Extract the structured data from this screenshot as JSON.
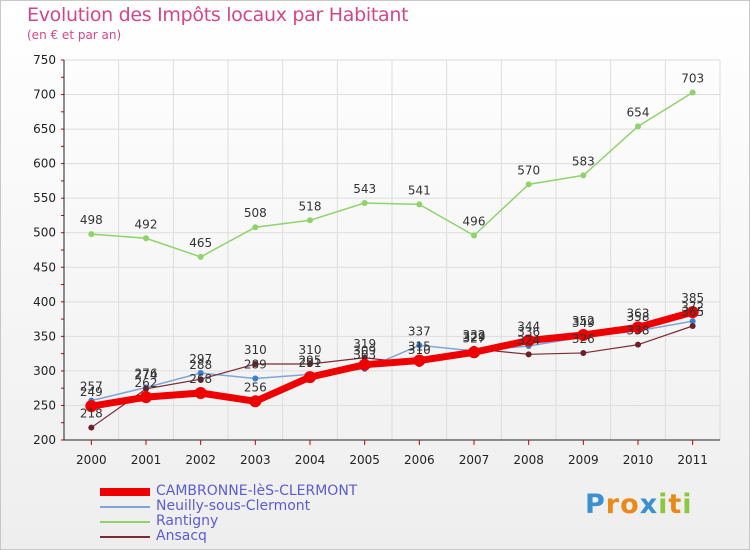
{
  "title": "Evolution des Impôts locaux par Habitant",
  "subtitle": "(en € et par an)",
  "logo": {
    "letters": [
      "P",
      "r",
      "o",
      "x",
      "i",
      "t",
      "i"
    ],
    "colors": [
      "#3c8fd0",
      "#e88a1a",
      "#e88a1a",
      "#3c8fd0",
      "#8dc63f",
      "#e88a1a",
      "#8dc63f"
    ]
  },
  "chart_data": {
    "type": "line",
    "categories": [
      "2000",
      "2001",
      "2002",
      "2003",
      "2004",
      "2005",
      "2006",
      "2007",
      "2008",
      "2009",
      "2010",
      "2011"
    ],
    "ylim": [
      200,
      750
    ],
    "yticks": [
      200,
      250,
      300,
      350,
      400,
      450,
      500,
      550,
      600,
      650,
      700,
      750
    ],
    "grid": true,
    "series": [
      {
        "name": "Rantigny",
        "color": "#8ed46b",
        "width": 1.5,
        "values": [
          498,
          492,
          465,
          508,
          518,
          543,
          541,
          496,
          570,
          583,
          654,
          703
        ]
      },
      {
        "name": "Neuilly-sous-Clermont",
        "color": "#7ea6d6",
        "width": 1.5,
        "marker": "#3b7fd0",
        "values": [
          257,
          276,
          297,
          289,
          295,
          303,
          337,
          329,
          336,
          349,
          358,
          372
        ]
      },
      {
        "name": "Ansacq",
        "color": "#7b2b33",
        "width": 1.2,
        "marker": "#6e1f27",
        "values": [
          218,
          274,
          288,
          310,
          310,
          319,
          310,
          332,
          324,
          326,
          338,
          365
        ]
      },
      {
        "name": "CAMBRONNE-lèS-CLERMONT",
        "color": "#ee0000",
        "width": 7,
        "values": [
          249,
          262,
          268,
          256,
          291,
          309,
          315,
          327,
          344,
          352,
          363,
          385
        ]
      }
    ],
    "labels": [
      {
        "series": "Rantigny",
        "values": [
          "498",
          "492",
          "465",
          "508",
          "518",
          "543",
          "541",
          "496",
          "570",
          "583",
          "654",
          "703"
        ]
      },
      {
        "series": "CAMBRONNE-lèS-CLERMONT",
        "values": [
          "249",
          "262",
          "268",
          "256",
          "291",
          "309",
          "315",
          "327",
          "344",
          "352",
          "363",
          "385"
        ]
      },
      {
        "series": "Neuilly-sous-Clermont",
        "values": [
          "257",
          "276",
          "297",
          "289",
          "295",
          "303",
          "337",
          "329",
          "336",
          "349",
          "358",
          "372"
        ]
      },
      {
        "series": "Ansacq",
        "values": [
          "218",
          "274",
          "288",
          "310",
          "310",
          "319",
          "310",
          "332",
          "324",
          "326",
          "338",
          "365"
        ]
      }
    ]
  },
  "legend": [
    {
      "name": "CAMBRONNE-lèS-CLERMONT",
      "color": "#ee0000",
      "thickness": 8
    },
    {
      "name": "Neuilly-sous-Clermont",
      "color": "#7ea6d6",
      "thickness": 2
    },
    {
      "name": "Rantigny",
      "color": "#8ed46b",
      "thickness": 2
    },
    {
      "name": "Ansacq",
      "color": "#7b2b33",
      "thickness": 2
    }
  ]
}
